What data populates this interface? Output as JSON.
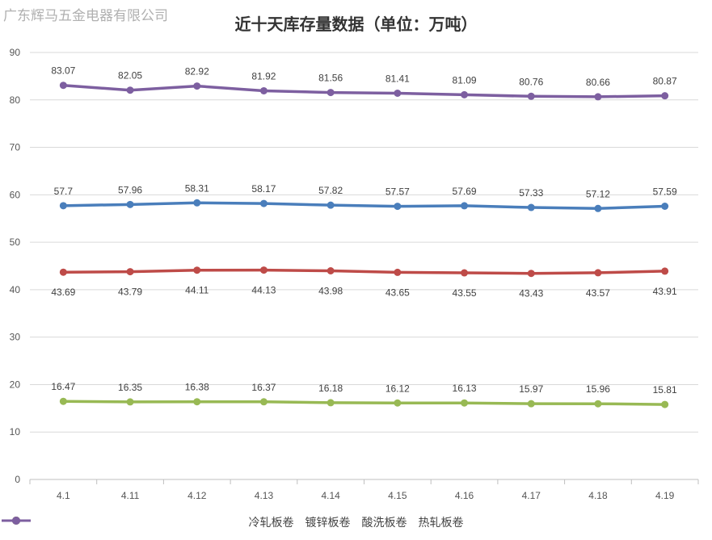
{
  "watermark": "广东辉马五金电器有限公司",
  "chart_data": {
    "type": "line",
    "title": "近十天库存量数据（单位：万吨）",
    "categories": [
      "4.1",
      "4.11",
      "4.12",
      "4.13",
      "4.14",
      "4.15",
      "4.16",
      "4.17",
      "4.18",
      "4.19"
    ],
    "ylim": [
      0,
      90
    ],
    "yticks": [
      0,
      10,
      20,
      30,
      40,
      50,
      60,
      70,
      80,
      90
    ],
    "grid": true,
    "legend_position": "bottom",
    "series": [
      {
        "name": "冷轧板卷",
        "color": "#4a7ebb",
        "label_position": "above",
        "values": [
          57.7,
          57.96,
          58.31,
          58.17,
          57.82,
          57.57,
          57.69,
          57.33,
          57.12,
          57.59
        ]
      },
      {
        "name": "镀锌板卷",
        "color": "#be4b48",
        "label_position": "below",
        "values": [
          43.69,
          43.79,
          44.11,
          44.13,
          43.98,
          43.65,
          43.55,
          43.43,
          43.57,
          43.91
        ]
      },
      {
        "name": "酸洗板卷",
        "color": "#98b954",
        "label_position": "above",
        "values": [
          16.47,
          16.35,
          16.38,
          16.37,
          16.18,
          16.12,
          16.13,
          15.97,
          15.96,
          15.81
        ]
      },
      {
        "name": "热轧板卷",
        "color": "#7d5fa0",
        "label_position": "above",
        "values": [
          83.07,
          82.05,
          82.92,
          81.92,
          81.56,
          81.41,
          81.09,
          80.76,
          80.66,
          80.87
        ]
      }
    ]
  }
}
